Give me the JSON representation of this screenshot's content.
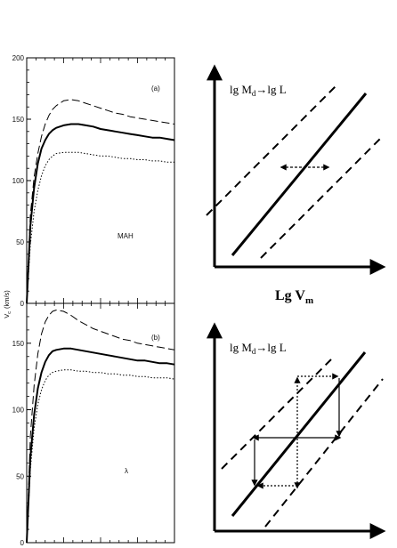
{
  "chart_data": [
    {
      "type": "line",
      "panel_label": "(a)",
      "annotation": "MAH",
      "ylabel": "V",
      "ylabel_sub": "c",
      "ylabel_unit": "(km/s)",
      "ylim": [
        0,
        200
      ],
      "yticks": [
        0,
        50,
        100,
        150,
        200
      ],
      "x": [
        0,
        1,
        2,
        3,
        4,
        5,
        6,
        7,
        8,
        10,
        12,
        14,
        16,
        18,
        20,
        22,
        24,
        26,
        28,
        30,
        32,
        34,
        36,
        38,
        40
      ],
      "series": [
        {
          "style": "dashed",
          "values": [
            0,
            72,
            103,
            122,
            136,
            146,
            153,
            158,
            161,
            165,
            166,
            165,
            163,
            161,
            159,
            157,
            155,
            154,
            152,
            151,
            150,
            149,
            148,
            147,
            146
          ]
        },
        {
          "style": "solid",
          "values": [
            0,
            63,
            94,
            114,
            126,
            133,
            138,
            141,
            143,
            145,
            146,
            146,
            145,
            144,
            142,
            141,
            140,
            139,
            138,
            137,
            136,
            135,
            135,
            134,
            133
          ]
        },
        {
          "style": "dotted",
          "values": [
            0,
            48,
            75,
            92,
            104,
            112,
            117,
            120,
            122,
            123,
            123,
            123,
            122,
            121,
            120,
            120,
            119,
            118,
            118,
            117,
            117,
            116,
            116,
            115,
            115
          ]
        }
      ]
    },
    {
      "type": "line",
      "panel_label": "(b)",
      "annotation": "λ",
      "ylim": [
        0,
        180
      ],
      "yticks": [
        0,
        50,
        100,
        150
      ],
      "x": [
        0,
        1,
        2,
        3,
        4,
        5,
        6,
        7,
        8,
        10,
        12,
        14,
        16,
        18,
        20,
        22,
        24,
        26,
        28,
        30,
        32,
        34,
        36,
        38,
        40
      ],
      "series": [
        {
          "style": "dashed",
          "values": [
            0,
            80,
            118,
            142,
            157,
            166,
            171,
            174,
            175,
            174,
            171,
            167,
            164,
            161,
            159,
            157,
            155,
            153,
            152,
            150,
            149,
            148,
            147,
            146,
            145
          ]
        },
        {
          "style": "solid",
          "values": [
            0,
            64,
            96,
            116,
            128,
            136,
            141,
            144,
            145,
            146,
            146,
            145,
            144,
            143,
            142,
            141,
            140,
            139,
            138,
            137,
            137,
            136,
            135,
            135,
            134
          ]
        },
        {
          "style": "dotted",
          "values": [
            0,
            55,
            86,
            104,
            115,
            122,
            126,
            128,
            129,
            130,
            130,
            129,
            129,
            128,
            128,
            127,
            127,
            126,
            126,
            125,
            125,
            124,
            124,
            124,
            123
          ]
        }
      ]
    }
  ],
  "diagram_top": {
    "ylabel_main": "lg M",
    "ylabel_sub": "d",
    "ylabel_rest": "→lg L",
    "xlabel_main": "Lg V",
    "xlabel_sub": "m"
  },
  "diagram_bottom": {
    "ylabel_main": "lg M",
    "ylabel_sub": "d",
    "ylabel_rest": "→lg L"
  }
}
